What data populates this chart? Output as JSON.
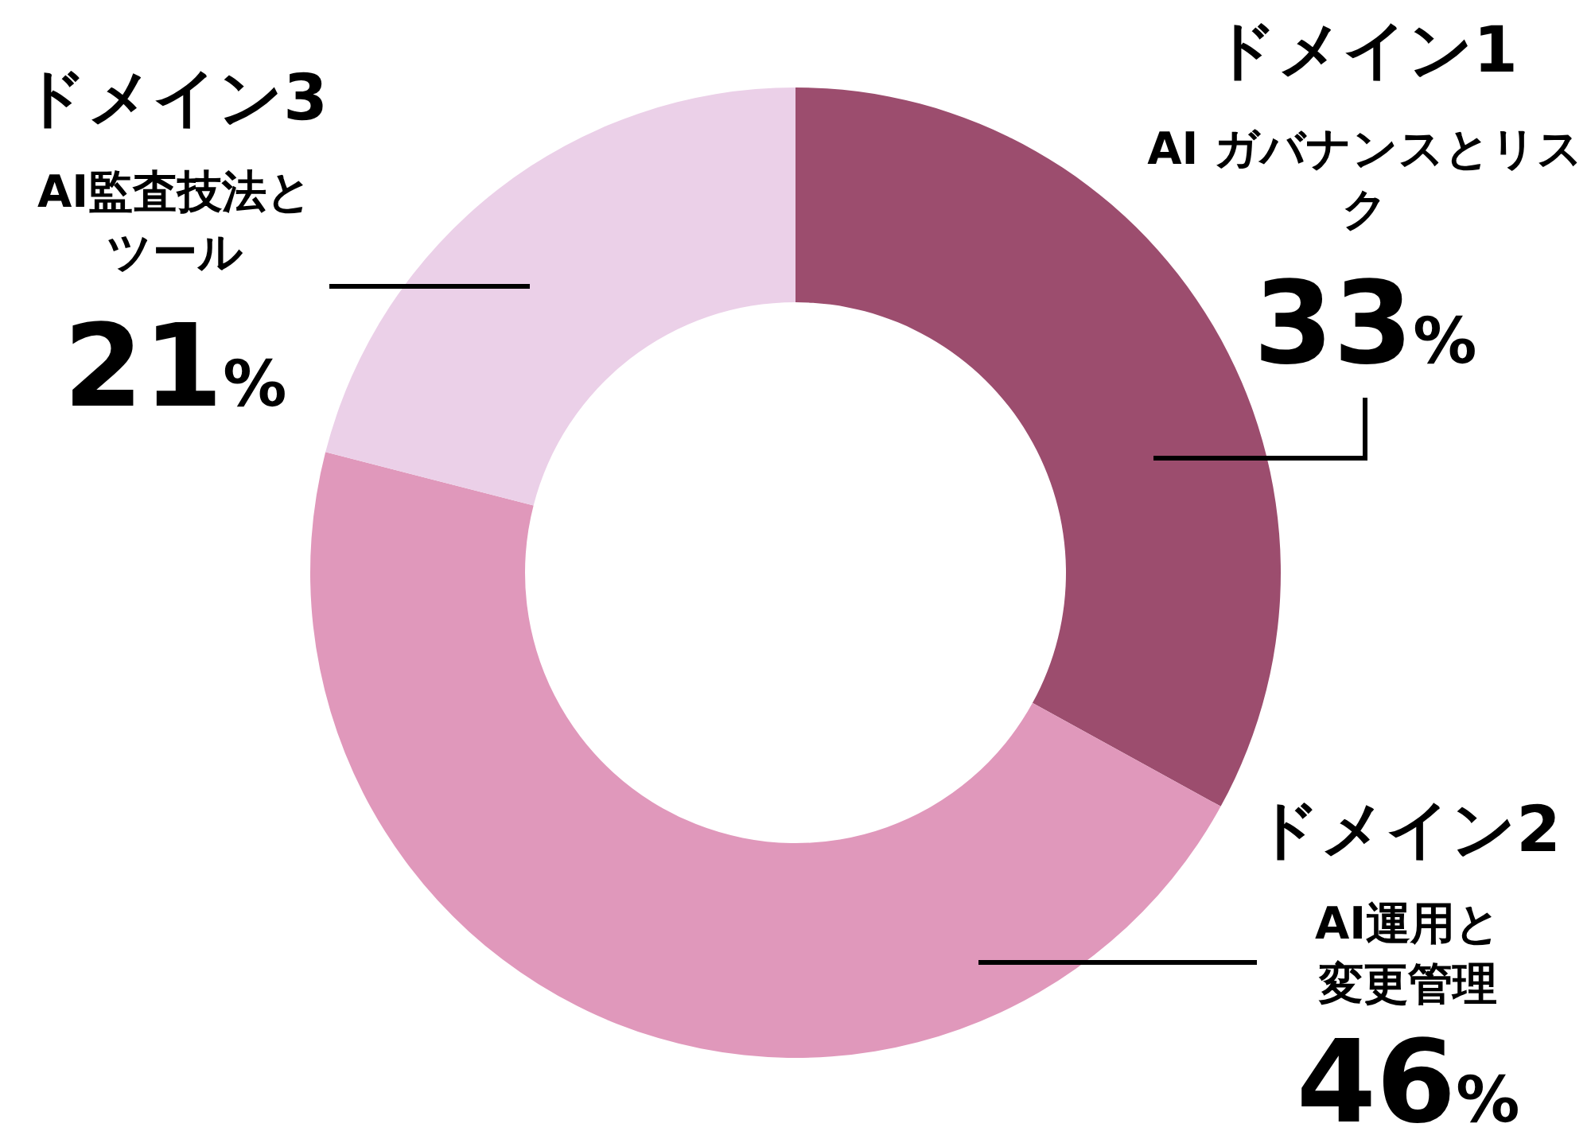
{
  "chart_data": {
    "type": "donut",
    "categories": [
      "ドメイン1",
      "ドメイン2",
      "ドメイン3"
    ],
    "values": [
      33,
      46,
      21
    ],
    "value_labels": [
      "33%",
      "46%",
      "21%"
    ],
    "colors": [
      "#9c4d6e",
      "#e098bb",
      "#ebd0e8"
    ],
    "annotations": [
      "AI ガバナンスとリスク",
      "AI運用と変更管理",
      "AI監査技法とツール"
    ],
    "legend": false
  }
}
